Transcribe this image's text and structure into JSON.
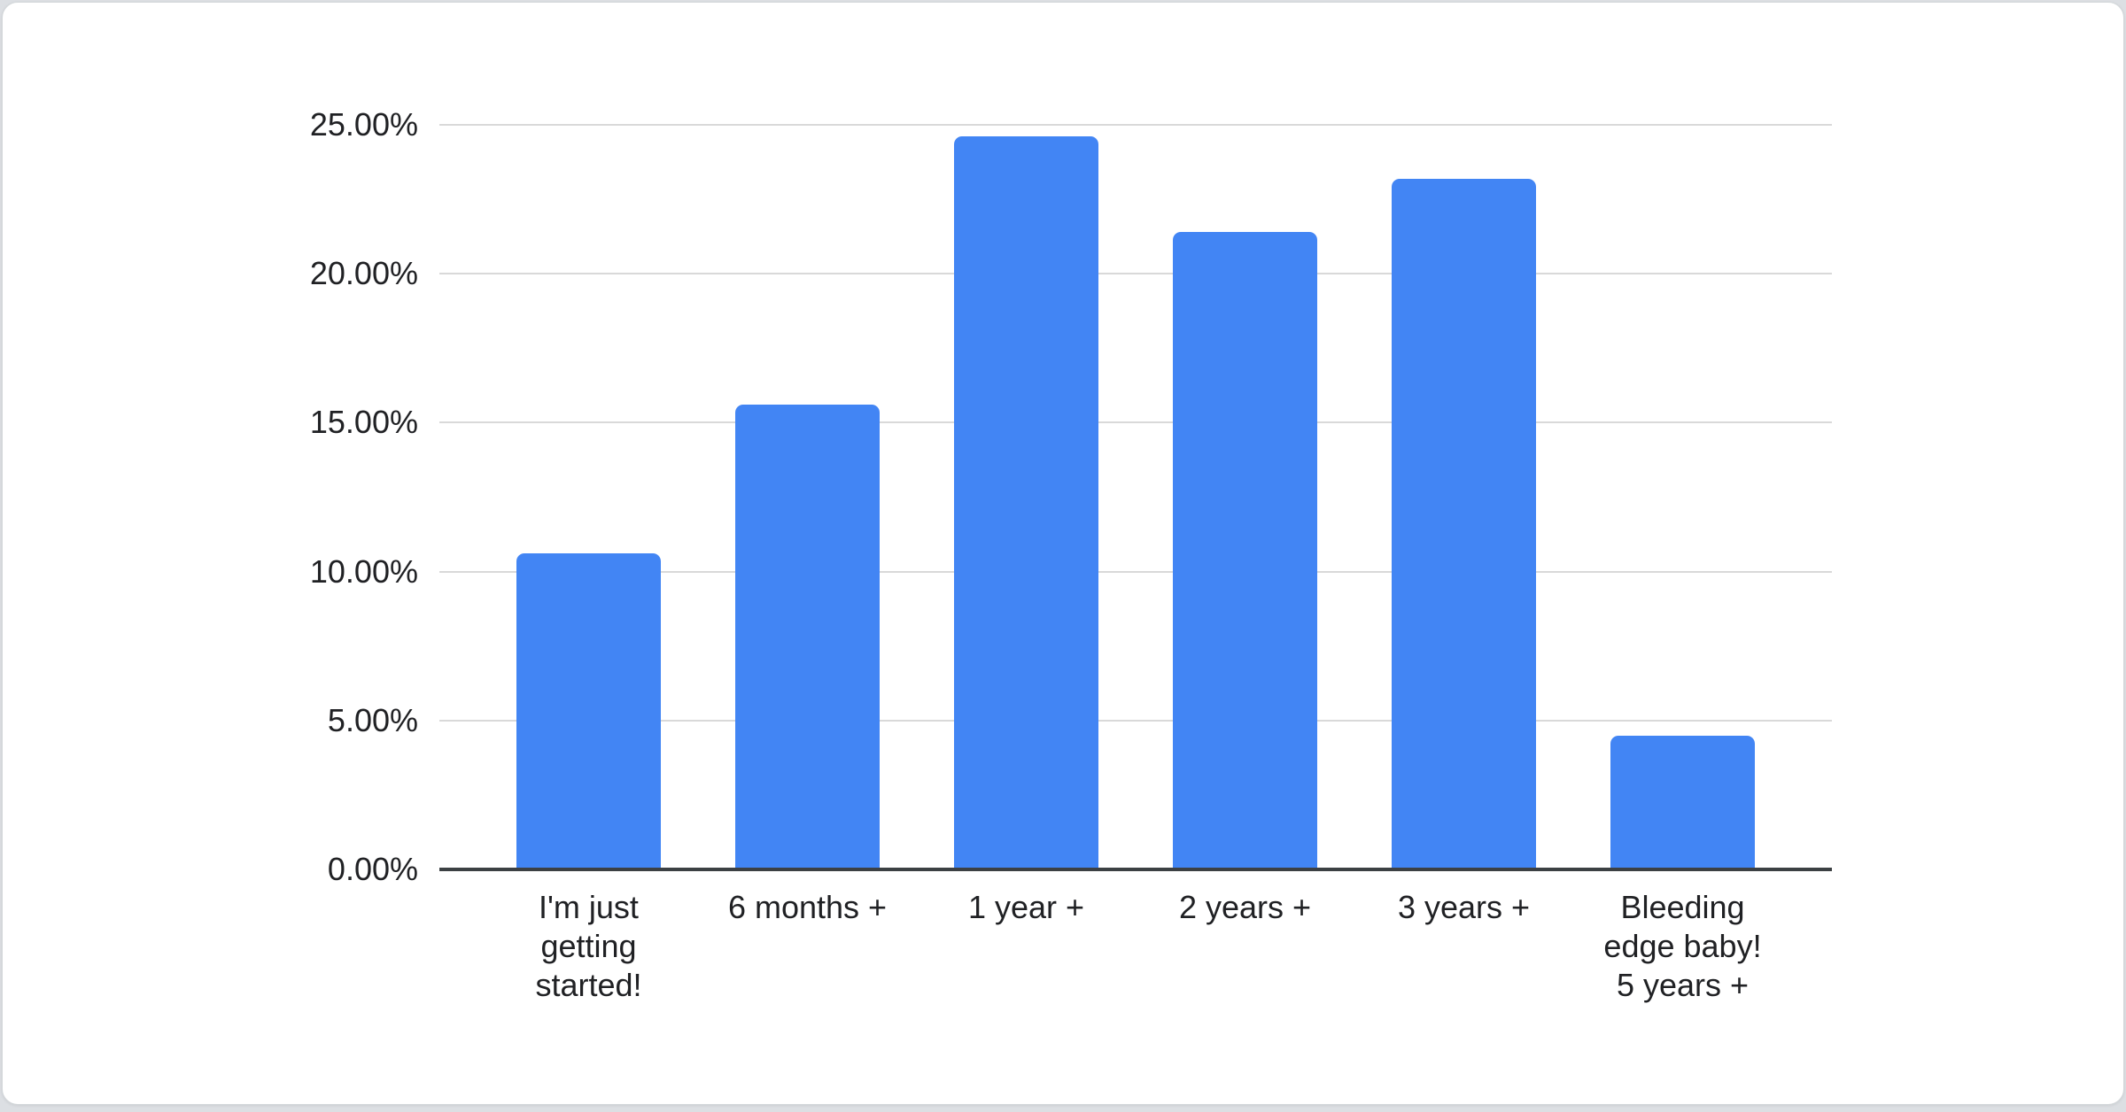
{
  "page": {
    "background_color": "#dcdfe3",
    "card_background": "#ffffff",
    "card_border_color": "#d3d7da"
  },
  "chart_data": {
    "type": "bar",
    "title": "",
    "categories": [
      "I'm just getting started!",
      "6 months +",
      "1 year +",
      "2 years +",
      "3 years +",
      "Bleeding edge baby! 5 years +"
    ],
    "category_lines": [
      [
        "I'm just",
        "getting",
        "started!"
      ],
      [
        "6 months +"
      ],
      [
        "1 year +"
      ],
      [
        "2 years +"
      ],
      [
        "3 years +"
      ],
      [
        "Bleeding",
        "edge baby!",
        "5 years +"
      ]
    ],
    "values": [
      10.6,
      15.6,
      24.6,
      21.4,
      23.2,
      4.5
    ],
    "value_unit": "%",
    "ylim": [
      0,
      25
    ],
    "y_ticks": [
      {
        "value": 0,
        "label": "0.00%"
      },
      {
        "value": 5,
        "label": "5.00%"
      },
      {
        "value": 10,
        "label": "10.00%"
      },
      {
        "value": 15,
        "label": "15.00%"
      },
      {
        "value": 20,
        "label": "20.00%"
      },
      {
        "value": 25,
        "label": "25.00%"
      }
    ],
    "xlabel": "",
    "ylabel": "",
    "grid": true,
    "legend": "none",
    "bar_color": "#4285f4",
    "gridline_color": "#d9d9d9",
    "axis_color": "#3c4043",
    "label_color": "#202124"
  }
}
